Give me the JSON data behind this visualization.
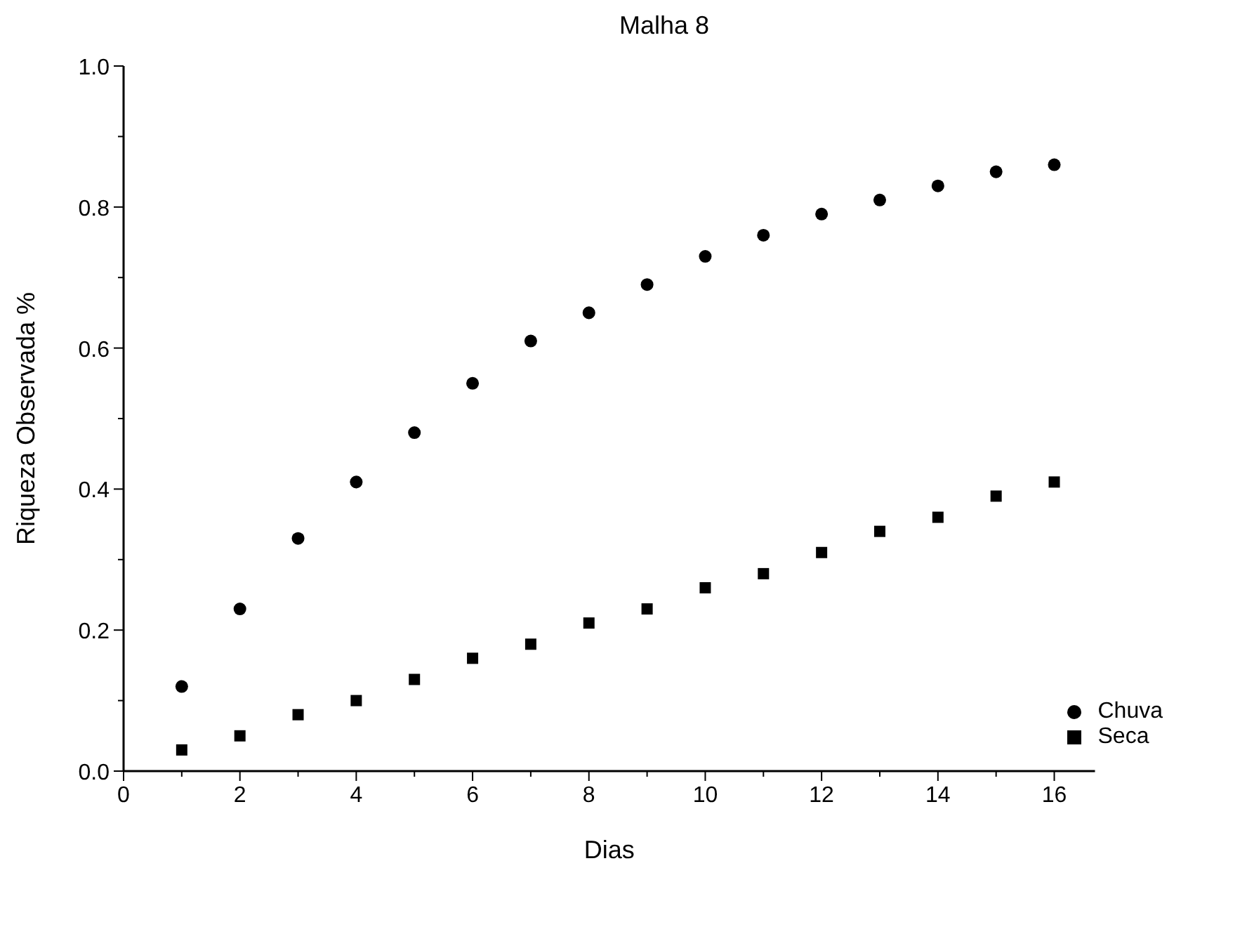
{
  "chart_data": {
    "type": "scatter",
    "title": "Malha 8",
    "xlabel": "Dias",
    "ylabel": "Riqueza Observada %",
    "x": [
      1,
      2,
      3,
      4,
      5,
      6,
      7,
      8,
      9,
      10,
      11,
      12,
      13,
      14,
      15,
      16
    ],
    "series": [
      {
        "name": "Chuva",
        "color": "#000000",
        "marker": "circle",
        "values": [
          0.12,
          0.23,
          0.33,
          0.41,
          0.48,
          0.55,
          0.61,
          0.65,
          0.69,
          0.73,
          0.76,
          0.79,
          0.81,
          0.83,
          0.85,
          0.86
        ]
      },
      {
        "name": "Seca",
        "color": "#000000",
        "marker": "square",
        "values": [
          0.03,
          0.05,
          0.08,
          0.1,
          0.13,
          0.16,
          0.18,
          0.21,
          0.23,
          0.26,
          0.28,
          0.31,
          0.34,
          0.36,
          0.39,
          0.41
        ]
      }
    ],
    "xlim": [
      0,
      16.7
    ],
    "xticks": [
      0,
      {
        "value": 1,
        "label": null
      },
      2,
      {
        "value": 3,
        "label": null
      },
      4,
      {
        "value": 5,
        "label": null
      },
      6,
      {
        "value": 7,
        "label": null
      },
      8,
      {
        "value": 9,
        "label": null
      },
      10,
      {
        "value": 11,
        "label": null
      },
      12,
      {
        "value": 13,
        "label": null
      },
      14,
      {
        "value": 15,
        "label": null
      },
      16
    ],
    "ylim": [
      0,
      1
    ],
    "yticks": [
      {
        "value": 0,
        "label": "0.0"
      },
      {
        "value": 0.1,
        "label": null
      },
      0.2,
      {
        "value": 0.3,
        "label": null
      },
      0.4,
      {
        "value": 0.5,
        "label": null
      },
      0.6,
      {
        "value": 0.7,
        "label": null
      },
      0.8,
      {
        "value": 0.9,
        "label": null
      },
      {
        "value": 1,
        "label": "1.0"
      }
    ],
    "grid": false,
    "legend": "bottom right"
  }
}
